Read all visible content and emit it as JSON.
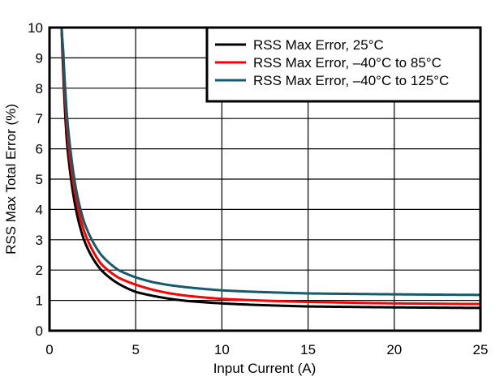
{
  "chart_data": {
    "type": "line",
    "title": "",
    "xlabel": "Input Current (A)",
    "ylabel": "RSS Max Total Error (%)",
    "xlim": [
      0,
      25
    ],
    "ylim": [
      0,
      10
    ],
    "xticks": [
      0,
      5,
      10,
      15,
      20,
      25
    ],
    "yticks": [
      0,
      1,
      2,
      3,
      4,
      5,
      6,
      7,
      8,
      9,
      10
    ],
    "grid": true,
    "legend_position": "upper right",
    "x": [
      0.7,
      0.8,
      1,
      1.25,
      1.5,
      2,
      2.5,
      3,
      4,
      5,
      6,
      7,
      8,
      10,
      12,
      15,
      20,
      25
    ],
    "series": [
      {
        "name": "RSS Max Error, 25°C",
        "color": "#000000",
        "values": [
          10.0,
          8.5,
          6.3,
          5.0,
          4.1,
          3.0,
          2.4,
          2.0,
          1.55,
          1.28,
          1.15,
          1.05,
          0.98,
          0.9,
          0.85,
          0.8,
          0.77,
          0.75
        ]
      },
      {
        "name": "RSS Max Error, –40°C to 85°C",
        "color": "#ff0000",
        "values": [
          10.0,
          8.9,
          6.8,
          5.4,
          4.5,
          3.3,
          2.65,
          2.2,
          1.75,
          1.52,
          1.35,
          1.23,
          1.15,
          1.05,
          1.0,
          0.95,
          0.9,
          0.88
        ]
      },
      {
        "name": "RSS Max Error, –40°C to 125°C",
        "color": "#165a6a",
        "values": [
          10.0,
          9.2,
          7.2,
          5.8,
          4.8,
          3.6,
          2.95,
          2.5,
          2.0,
          1.76,
          1.6,
          1.5,
          1.43,
          1.33,
          1.28,
          1.23,
          1.2,
          1.18
        ]
      }
    ]
  }
}
